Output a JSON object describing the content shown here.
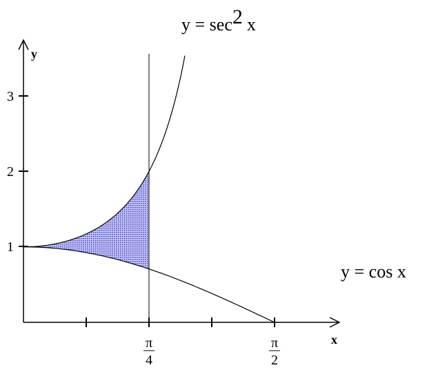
{
  "curve_labels": {
    "upper": {
      "text": "y = sec",
      "exponent": "2",
      "tail": "x"
    },
    "lower": {
      "text": "y = cos x"
    }
  },
  "axes": {
    "x_label": "x",
    "y_label": "y"
  },
  "y_ticks": [
    "1",
    "2",
    "3"
  ],
  "x_ticks": [
    {
      "numerator": "π",
      "denominator": "4"
    },
    {
      "numerator": "π",
      "denominator": "2"
    }
  ]
}
